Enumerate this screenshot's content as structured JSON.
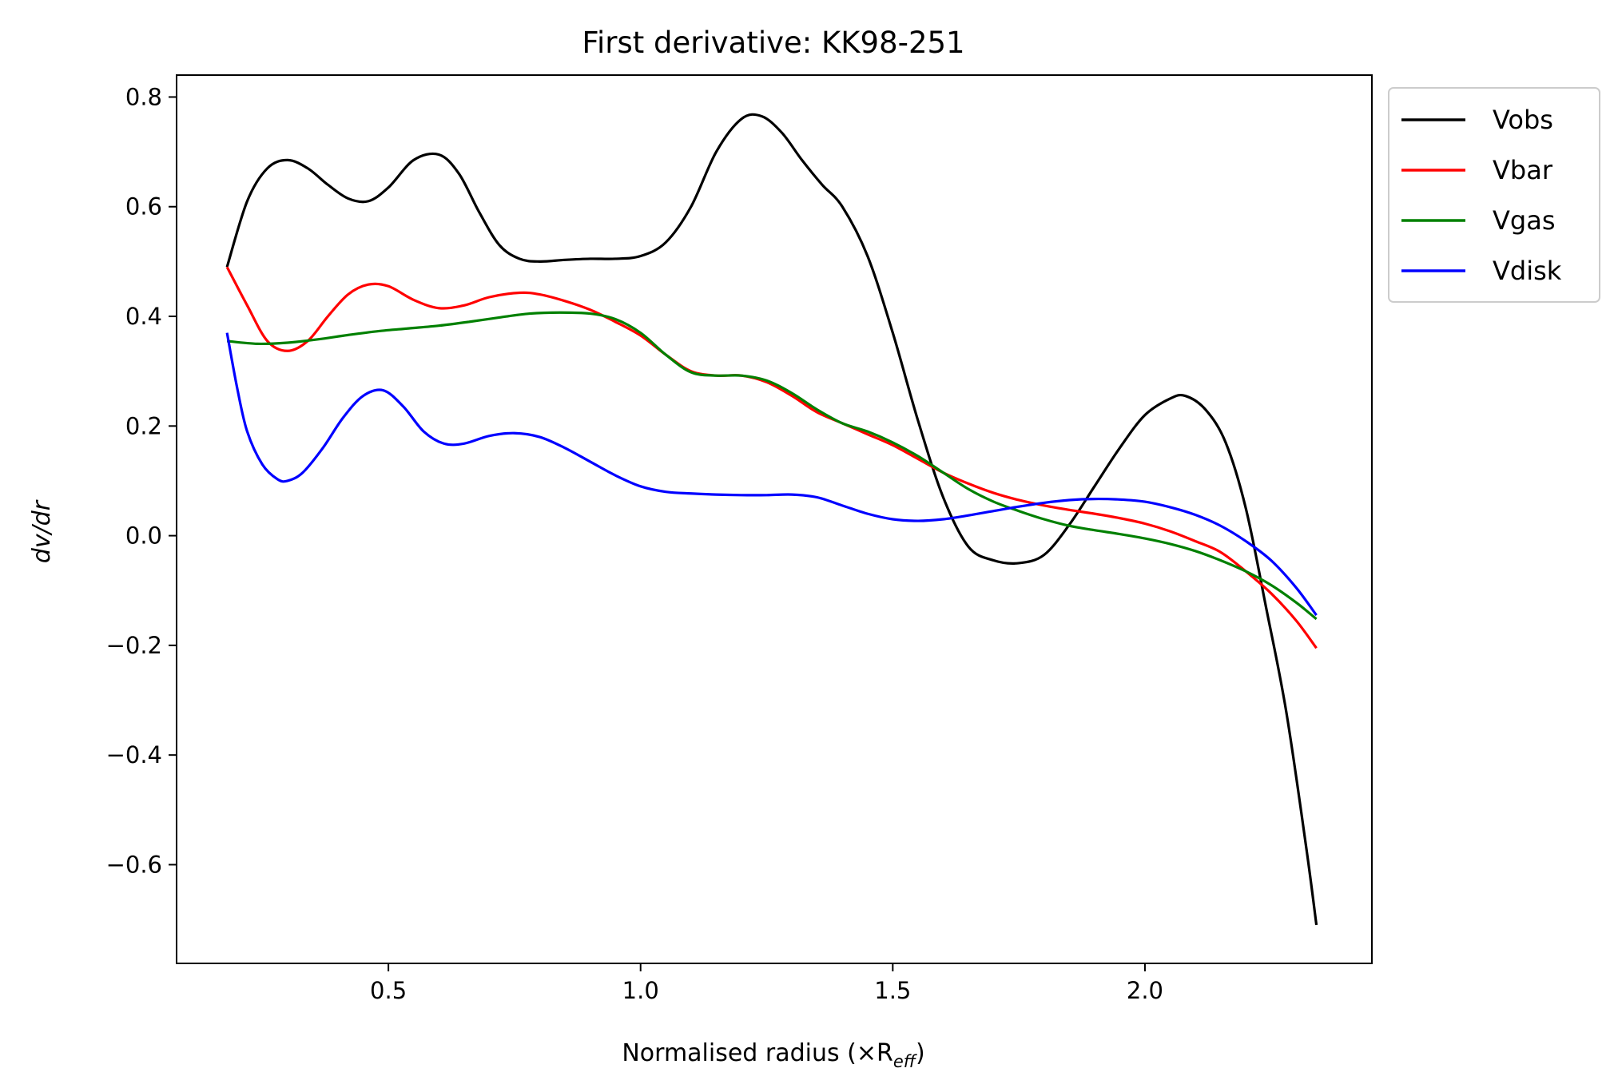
{
  "chart_data": {
    "type": "line",
    "title": "First derivative: KK98-251",
    "xlabel": "Normalised radius (×R",
    "xlabel_sub": "eff",
    "xlabel_close": ")",
    "ylabel": "dv/dr",
    "xlim": [
      0.08,
      2.45
    ],
    "ylim": [
      -0.78,
      0.84
    ],
    "xticks": [
      0.5,
      1.0,
      1.5,
      2.0
    ],
    "xtick_labels": [
      "0.5",
      "1.0",
      "1.5",
      "2.0"
    ],
    "yticks": [
      -0.6,
      -0.4,
      -0.2,
      0.0,
      0.2,
      0.4,
      0.6,
      0.8
    ],
    "ytick_labels": [
      "−0.6",
      "−0.4",
      "−0.2",
      "0.0",
      "0.2",
      "0.4",
      "0.6",
      "0.8"
    ],
    "grid": false,
    "legend_position": "outside-top-right",
    "series": [
      {
        "name": "Vobs",
        "color": "#000000",
        "x": [
          0.18,
          0.22,
          0.26,
          0.3,
          0.34,
          0.38,
          0.42,
          0.46,
          0.5,
          0.55,
          0.6,
          0.64,
          0.68,
          0.72,
          0.76,
          0.8,
          0.85,
          0.9,
          0.95,
          1.0,
          1.05,
          1.1,
          1.15,
          1.2,
          1.24,
          1.28,
          1.32,
          1.36,
          1.4,
          1.45,
          1.5,
          1.55,
          1.6,
          1.65,
          1.7,
          1.75,
          1.8,
          1.85,
          1.9,
          1.95,
          2.0,
          2.05,
          2.08,
          2.12,
          2.16,
          2.2,
          2.24,
          2.28,
          2.32,
          2.34
        ],
        "y": [
          0.49,
          0.61,
          0.67,
          0.685,
          0.67,
          0.64,
          0.615,
          0.61,
          0.635,
          0.685,
          0.695,
          0.66,
          0.59,
          0.53,
          0.505,
          0.5,
          0.503,
          0.505,
          0.505,
          0.51,
          0.535,
          0.6,
          0.7,
          0.76,
          0.765,
          0.735,
          0.685,
          0.64,
          0.6,
          0.51,
          0.37,
          0.21,
          0.07,
          -0.02,
          -0.045,
          -0.05,
          -0.035,
          0.02,
          0.09,
          0.16,
          0.22,
          0.25,
          0.255,
          0.23,
          0.17,
          0.05,
          -0.13,
          -0.32,
          -0.57,
          -0.71
        ]
      },
      {
        "name": "Vbar",
        "color": "#ff0000",
        "x": [
          0.18,
          0.22,
          0.26,
          0.3,
          0.34,
          0.38,
          0.42,
          0.46,
          0.5,
          0.55,
          0.6,
          0.65,
          0.7,
          0.76,
          0.8,
          0.85,
          0.9,
          0.95,
          1.0,
          1.05,
          1.1,
          1.15,
          1.2,
          1.25,
          1.3,
          1.35,
          1.4,
          1.45,
          1.5,
          1.55,
          1.6,
          1.65,
          1.7,
          1.75,
          1.8,
          1.85,
          1.9,
          1.95,
          2.0,
          2.05,
          2.1,
          2.15,
          2.2,
          2.25,
          2.3,
          2.34
        ],
        "y": [
          0.49,
          0.42,
          0.355,
          0.337,
          0.355,
          0.4,
          0.44,
          0.458,
          0.455,
          0.43,
          0.415,
          0.42,
          0.435,
          0.443,
          0.44,
          0.428,
          0.412,
          0.39,
          0.365,
          0.33,
          0.3,
          0.292,
          0.292,
          0.28,
          0.255,
          0.225,
          0.205,
          0.185,
          0.165,
          0.14,
          0.115,
          0.095,
          0.078,
          0.065,
          0.055,
          0.047,
          0.04,
          0.032,
          0.022,
          0.008,
          -0.01,
          -0.03,
          -0.065,
          -0.105,
          -0.155,
          -0.205
        ]
      },
      {
        "name": "Vgas",
        "color": "#008000",
        "x": [
          0.18,
          0.24,
          0.3,
          0.36,
          0.42,
          0.48,
          0.54,
          0.6,
          0.66,
          0.72,
          0.78,
          0.84,
          0.9,
          0.95,
          1.0,
          1.05,
          1.1,
          1.15,
          1.2,
          1.25,
          1.3,
          1.35,
          1.4,
          1.45,
          1.5,
          1.55,
          1.6,
          1.65,
          1.7,
          1.75,
          1.8,
          1.85,
          1.9,
          1.95,
          2.0,
          2.05,
          2.1,
          2.15,
          2.2,
          2.25,
          2.3,
          2.34
        ],
        "y": [
          0.355,
          0.35,
          0.352,
          0.358,
          0.366,
          0.373,
          0.378,
          0.383,
          0.39,
          0.398,
          0.405,
          0.407,
          0.405,
          0.395,
          0.37,
          0.33,
          0.298,
          0.292,
          0.292,
          0.283,
          0.26,
          0.23,
          0.205,
          0.19,
          0.17,
          0.145,
          0.115,
          0.085,
          0.062,
          0.045,
          0.03,
          0.018,
          0.01,
          0.003,
          -0.005,
          -0.015,
          -0.028,
          -0.045,
          -0.065,
          -0.09,
          -0.122,
          -0.152
        ]
      },
      {
        "name": "Vdisk",
        "color": "#0000ff",
        "x": [
          0.18,
          0.2,
          0.22,
          0.25,
          0.28,
          0.3,
          0.33,
          0.37,
          0.41,
          0.45,
          0.49,
          0.53,
          0.57,
          0.61,
          0.65,
          0.7,
          0.75,
          0.8,
          0.85,
          0.9,
          0.95,
          1.0,
          1.05,
          1.1,
          1.15,
          1.2,
          1.25,
          1.3,
          1.35,
          1.4,
          1.45,
          1.5,
          1.55,
          1.6,
          1.65,
          1.7,
          1.75,
          1.8,
          1.85,
          1.9,
          1.95,
          2.0,
          2.05,
          2.1,
          2.15,
          2.2,
          2.25,
          2.3,
          2.34
        ],
        "y": [
          0.37,
          0.27,
          0.19,
          0.13,
          0.103,
          0.1,
          0.115,
          0.16,
          0.215,
          0.255,
          0.265,
          0.235,
          0.19,
          0.168,
          0.168,
          0.182,
          0.187,
          0.18,
          0.16,
          0.135,
          0.11,
          0.09,
          0.08,
          0.077,
          0.075,
          0.074,
          0.074,
          0.075,
          0.07,
          0.055,
          0.04,
          0.03,
          0.027,
          0.03,
          0.037,
          0.045,
          0.053,
          0.06,
          0.065,
          0.067,
          0.066,
          0.062,
          0.052,
          0.038,
          0.018,
          -0.01,
          -0.045,
          -0.095,
          -0.145
        ]
      }
    ]
  }
}
